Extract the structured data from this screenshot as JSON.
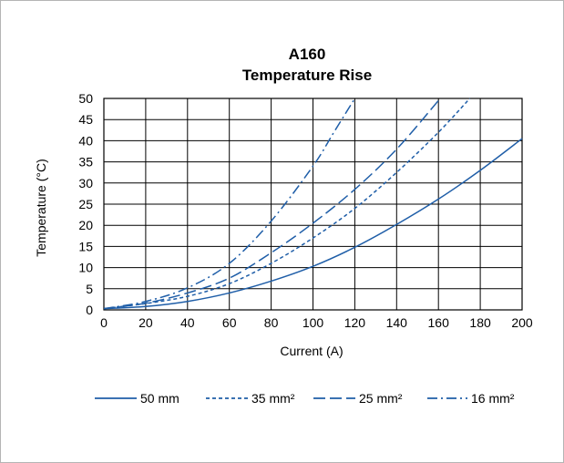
{
  "chart_data": {
    "type": "line",
    "title_line1": "A160",
    "title_line2": "Temperature Rise",
    "xlabel": "Current (A)",
    "ylabel": "Temperature (°C)",
    "xlim": [
      0,
      200
    ],
    "ylim": [
      0,
      50
    ],
    "xticks": [
      "0",
      "20",
      "40",
      "60",
      "80",
      "100",
      "120",
      "140",
      "160",
      "180",
      "200"
    ],
    "yticks": [
      "0",
      "5",
      "10",
      "15",
      "20",
      "25",
      "30",
      "35",
      "40",
      "45",
      "50"
    ],
    "grid": true,
    "legend_position": "bottom",
    "line_color": "#1f5ea8",
    "series": [
      {
        "name": "50 mm",
        "dash": "solid",
        "points": [
          [
            0,
            0.3
          ],
          [
            20,
            0.8
          ],
          [
            40,
            2.0
          ],
          [
            60,
            4.0
          ],
          [
            80,
            6.8
          ],
          [
            100,
            10.3
          ],
          [
            120,
            14.8
          ],
          [
            140,
            20.2
          ],
          [
            160,
            26.2
          ],
          [
            180,
            33.0
          ],
          [
            200,
            40.5
          ]
        ]
      },
      {
        "name": "35 mm²",
        "dash": "short",
        "points": [
          [
            0,
            0.3
          ],
          [
            20,
            1.5
          ],
          [
            40,
            3.2
          ],
          [
            60,
            6.2
          ],
          [
            80,
            11.0
          ],
          [
            100,
            17.0
          ],
          [
            120,
            24.0
          ],
          [
            140,
            32.5
          ],
          [
            160,
            42.0
          ],
          [
            175,
            50.0
          ]
        ]
      },
      {
        "name": "25 mm²",
        "dash": "long",
        "points": [
          [
            0,
            0.3
          ],
          [
            20,
            1.6
          ],
          [
            40,
            4.0
          ],
          [
            60,
            7.5
          ],
          [
            80,
            13.5
          ],
          [
            100,
            20.5
          ],
          [
            120,
            28.5
          ],
          [
            140,
            38.0
          ],
          [
            160,
            49.5
          ]
        ]
      },
      {
        "name": "16 mm²",
        "dash": "dashdot",
        "points": [
          [
            0,
            0.3
          ],
          [
            20,
            2.0
          ],
          [
            40,
            5.2
          ],
          [
            60,
            11.0
          ],
          [
            80,
            21.0
          ],
          [
            100,
            34.0
          ],
          [
            110,
            42.0
          ],
          [
            120,
            50.0
          ]
        ]
      }
    ]
  }
}
